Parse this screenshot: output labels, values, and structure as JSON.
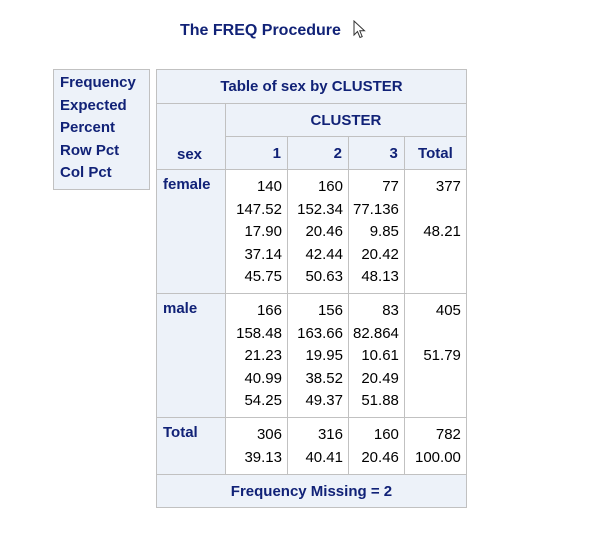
{
  "title": "The FREQ Procedure",
  "legend": [
    "Frequency",
    "Expected",
    "Percent",
    "Row Pct",
    "Col Pct"
  ],
  "table": {
    "caption": "Table of sex by CLUSTER",
    "col_var": "CLUSTER",
    "row_var": "sex",
    "columns": [
      "1",
      "2",
      "3",
      "Total"
    ],
    "rows": [
      {
        "label": "female",
        "cells": [
          [
            "140",
            "147.52",
            "17.90",
            "37.14",
            "45.75"
          ],
          [
            "160",
            "152.34",
            "20.46",
            "42.44",
            "50.63"
          ],
          [
            "77",
            "77.136",
            "9.85",
            "20.42",
            "48.13"
          ],
          [
            "377",
            "",
            "48.21",
            "",
            ""
          ]
        ]
      },
      {
        "label": "male",
        "cells": [
          [
            "166",
            "158.48",
            "21.23",
            "40.99",
            "54.25"
          ],
          [
            "156",
            "163.66",
            "19.95",
            "38.52",
            "49.37"
          ],
          [
            "83",
            "82.864",
            "10.61",
            "20.49",
            "51.88"
          ],
          [
            "405",
            "",
            "51.79",
            "",
            ""
          ]
        ]
      },
      {
        "label": "Total",
        "cells": [
          [
            "306",
            "39.13"
          ],
          [
            "316",
            "40.41"
          ],
          [
            "160",
            "20.46"
          ],
          [
            "782",
            "100.00"
          ]
        ]
      }
    ],
    "footer": "Frequency Missing = 2"
  },
  "colors": {
    "header_bg": "#edf2f9",
    "header_text": "#112277",
    "border": "#c1c1c1"
  },
  "icons": {
    "cursor": "mouse-pointer-icon"
  }
}
